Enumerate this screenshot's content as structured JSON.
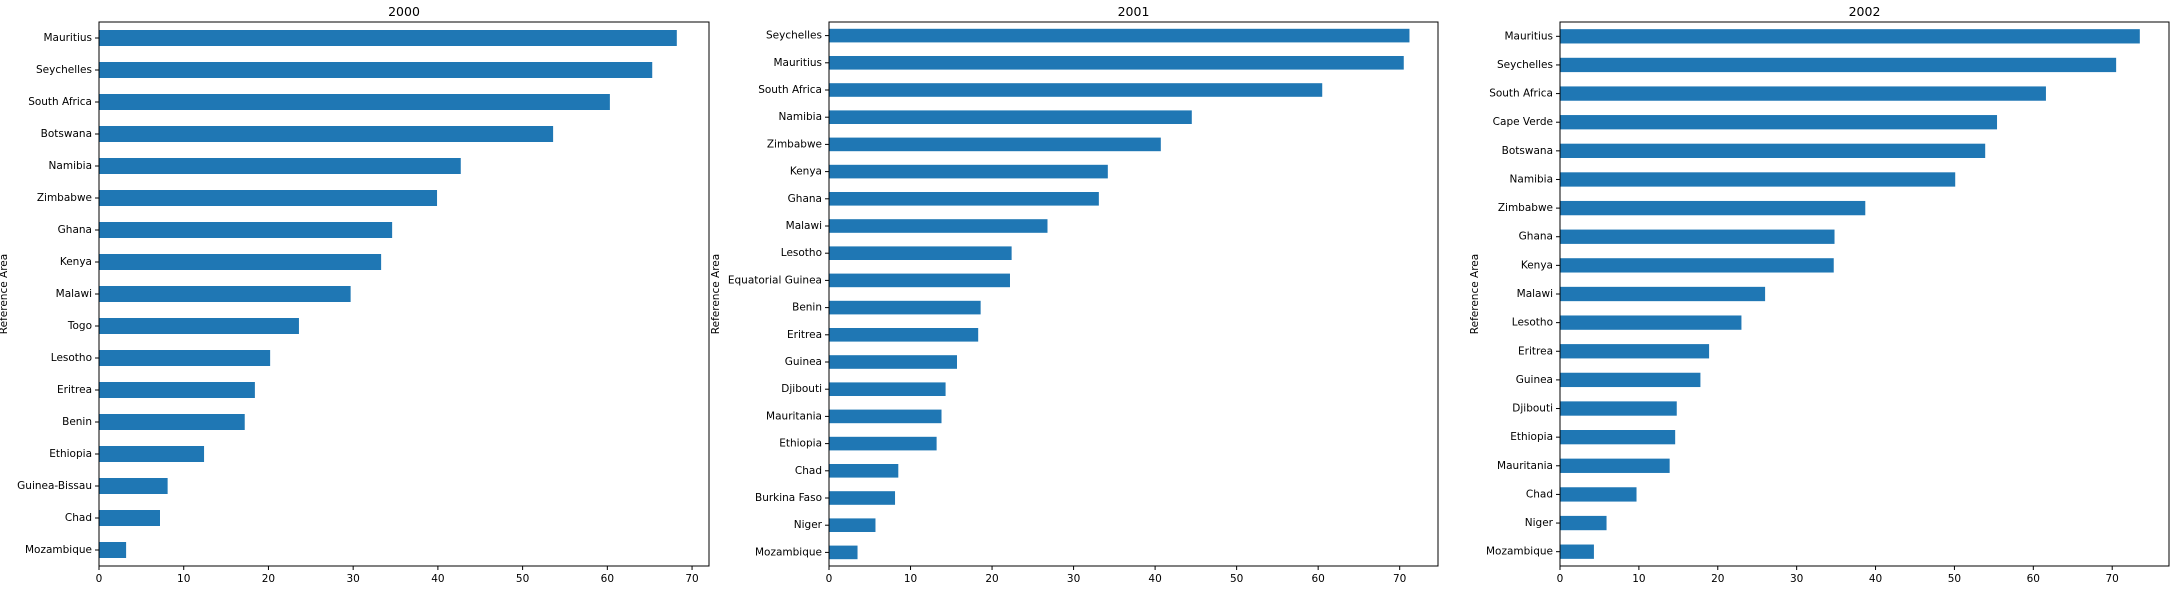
{
  "chart_data": [
    {
      "type": "bar",
      "orientation": "horizontal",
      "title": "2000",
      "ylabel": "Reference Area",
      "xlabel": "",
      "xlim": [
        0,
        72
      ],
      "xticks": [
        0,
        10,
        20,
        30,
        40,
        50,
        60,
        70
      ],
      "color": "#1f77b4",
      "grid": false,
      "categories": [
        "Mauritius",
        "Seychelles",
        "South Africa",
        "Botswana",
        "Namibia",
        "Zimbabwe",
        "Ghana",
        "Kenya",
        "Malawi",
        "Togo",
        "Lesotho",
        "Eritrea",
        "Benin",
        "Ethiopia",
        "Guinea-Bissau",
        "Chad",
        "Mozambique"
      ],
      "values": [
        68.2,
        65.3,
        60.3,
        53.6,
        42.7,
        39.9,
        34.6,
        33.3,
        29.7,
        23.6,
        20.2,
        18.4,
        17.2,
        12.4,
        8.1,
        7.2,
        3.2
      ]
    },
    {
      "type": "bar",
      "orientation": "horizontal",
      "title": "2001",
      "ylabel": "Reference Area",
      "xlabel": "",
      "xlim": [
        0,
        74.7
      ],
      "xticks": [
        0,
        10,
        20,
        30,
        40,
        50,
        60,
        70
      ],
      "color": "#1f77b4",
      "grid": false,
      "categories": [
        "Seychelles",
        "Mauritius",
        "South Africa",
        "Namibia",
        "Zimbabwe",
        "Kenya",
        "Ghana",
        "Malawi",
        "Lesotho",
        "Equatorial Guinea",
        "Benin",
        "Eritrea",
        "Guinea",
        "Djibouti",
        "Mauritania",
        "Ethiopia",
        "Chad",
        "Burkina Faso",
        "Niger",
        "Mozambique"
      ],
      "values": [
        71.2,
        70.5,
        60.5,
        44.5,
        40.7,
        34.2,
        33.1,
        26.8,
        22.4,
        22.2,
        18.6,
        18.3,
        15.7,
        14.3,
        13.8,
        13.2,
        8.5,
        8.1,
        5.7,
        3.5
      ]
    },
    {
      "type": "bar",
      "orientation": "horizontal",
      "title": "2002",
      "ylabel": "Reference Area",
      "xlabel": "",
      "xlim": [
        0,
        77.2
      ],
      "xticks": [
        0,
        10,
        20,
        30,
        40,
        50,
        60,
        70
      ],
      "color": "#1f77b4",
      "grid": false,
      "categories": [
        "Mauritius",
        "Seychelles",
        "South Africa",
        "Cape Verde",
        "Botswana",
        "Namibia",
        "Zimbabwe",
        "Ghana",
        "Kenya",
        "Malawi",
        "Lesotho",
        "Eritrea",
        "Guinea",
        "Djibouti",
        "Ethiopia",
        "Mauritania",
        "Chad",
        "Niger",
        "Mozambique"
      ],
      "values": [
        73.5,
        70.5,
        61.6,
        55.4,
        53.9,
        50.1,
        38.7,
        34.8,
        34.7,
        26.0,
        23.0,
        18.9,
        17.8,
        14.8,
        14.6,
        13.9,
        9.7,
        5.9,
        4.3
      ]
    }
  ]
}
